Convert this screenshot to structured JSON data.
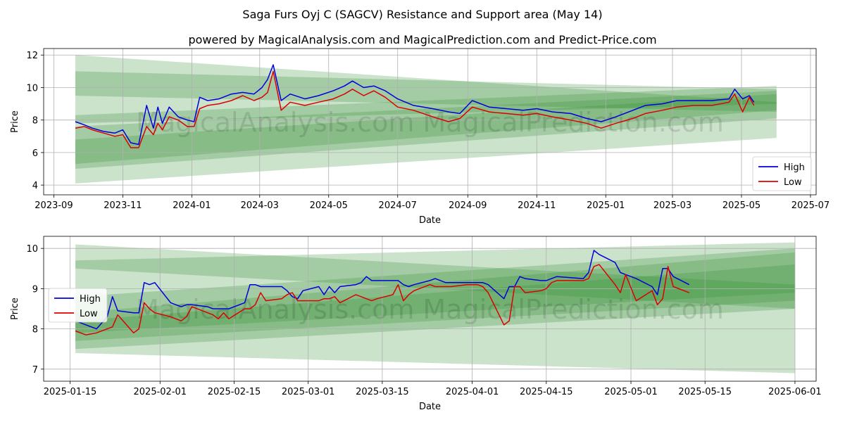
{
  "title": "Saga Furs Oyj C (SAGCV) Resistance and Support area (May 14)",
  "subtitle": "powered by MagicalAnalysis.com and MagicalPrediction.com and Predict-Price.com",
  "watermark": "MagicalAnalysis.com    MagicalPrediction.com",
  "colors": {
    "high": "#0000dd",
    "low": "#dd0000",
    "band": "#2e8b2e"
  },
  "chart_data": [
    {
      "type": "line",
      "xlabel": "Date",
      "ylabel": "Price",
      "grid": true,
      "legend_position": "bottom-right",
      "xlim": [
        "2023-08-23",
        "2025-07-06"
      ],
      "ylim": [
        3.4,
        12.4
      ],
      "x_ticks": [
        "2023-09",
        "2023-11",
        "2024-01",
        "2024-03",
        "2024-05",
        "2024-07",
        "2024-09",
        "2024-11",
        "2025-01",
        "2025-03",
        "2025-05",
        "2025-07"
      ],
      "y_ticks": [
        4,
        6,
        8,
        10,
        12
      ],
      "bands": [
        {
          "x": [
            "2023-09-20",
            "2025-06-01"
          ],
          "upper": [
            12.0,
            9.1
          ],
          "lower": [
            9.5,
            8.5
          ]
        },
        {
          "x": [
            "2023-09-20",
            "2025-06-01"
          ],
          "upper": [
            11.0,
            9.9
          ],
          "lower": [
            7.8,
            9.0
          ]
        },
        {
          "x": [
            "2023-09-20",
            "2025-06-01"
          ],
          "upper": [
            8.3,
            10.1
          ],
          "lower": [
            4.1,
            6.9
          ]
        },
        {
          "x": [
            "2023-09-20",
            "2025-06-01"
          ],
          "upper": [
            7.6,
            9.8
          ],
          "lower": [
            5.0,
            8.1
          ]
        },
        {
          "x": [
            "2023-09-20",
            "2025-06-01"
          ],
          "upper": [
            6.8,
            9.6
          ],
          "lower": [
            5.3,
            8.6
          ]
        }
      ],
      "series": [
        {
          "name": "High",
          "x": [
            "2023-09-20",
            "2023-09-28",
            "2023-10-05",
            "2023-10-15",
            "2023-10-25",
            "2023-11-01",
            "2023-11-08",
            "2023-11-15",
            "2023-11-22",
            "2023-11-28",
            "2023-12-02",
            "2023-12-06",
            "2023-12-12",
            "2023-12-20",
            "2023-12-28",
            "2024-01-03",
            "2024-01-08",
            "2024-01-15",
            "2024-01-25",
            "2024-02-05",
            "2024-02-15",
            "2024-02-25",
            "2024-03-03",
            "2024-03-08",
            "2024-03-13",
            "2024-03-20",
            "2024-03-28",
            "2024-04-10",
            "2024-04-22",
            "2024-05-05",
            "2024-05-15",
            "2024-05-22",
            "2024-06-01",
            "2024-06-10",
            "2024-06-20",
            "2024-07-01",
            "2024-07-15",
            "2024-08-01",
            "2024-08-15",
            "2024-08-25",
            "2024-09-05",
            "2024-09-20",
            "2024-10-05",
            "2024-10-20",
            "2024-11-01",
            "2024-11-15",
            "2024-12-01",
            "2024-12-15",
            "2024-12-28",
            "2025-01-10",
            "2025-01-25",
            "2025-02-05",
            "2025-02-20",
            "2025-03-05",
            "2025-03-20",
            "2025-04-05",
            "2025-04-20",
            "2025-04-25",
            "2025-05-02",
            "2025-05-08",
            "2025-05-12"
          ],
          "values": [
            7.9,
            7.7,
            7.5,
            7.3,
            7.2,
            7.4,
            6.6,
            6.5,
            8.9,
            7.5,
            8.8,
            7.8,
            8.8,
            8.2,
            8.0,
            7.9,
            9.4,
            9.2,
            9.3,
            9.6,
            9.7,
            9.6,
            10.0,
            10.5,
            11.4,
            9.2,
            9.6,
            9.3,
            9.5,
            9.8,
            10.1,
            10.4,
            10.0,
            10.1,
            9.8,
            9.3,
            8.9,
            8.7,
            8.5,
            8.4,
            9.2,
            8.8,
            8.7,
            8.6,
            8.7,
            8.5,
            8.4,
            8.1,
            7.9,
            8.2,
            8.6,
            8.9,
            9.0,
            9.2,
            9.2,
            9.2,
            9.3,
            9.9,
            9.3,
            9.5,
            9.1
          ]
        },
        {
          "name": "Low",
          "x": [
            "2023-09-20",
            "2023-09-28",
            "2023-10-05",
            "2023-10-15",
            "2023-10-25",
            "2023-11-01",
            "2023-11-08",
            "2023-11-15",
            "2023-11-22",
            "2023-11-28",
            "2023-12-02",
            "2023-12-06",
            "2023-12-12",
            "2023-12-20",
            "2023-12-28",
            "2024-01-03",
            "2024-01-08",
            "2024-01-15",
            "2024-01-25",
            "2024-02-05",
            "2024-02-15",
            "2024-02-25",
            "2024-03-03",
            "2024-03-08",
            "2024-03-13",
            "2024-03-20",
            "2024-03-28",
            "2024-04-10",
            "2024-04-22",
            "2024-05-05",
            "2024-05-15",
            "2024-05-22",
            "2024-06-01",
            "2024-06-10",
            "2024-06-20",
            "2024-07-01",
            "2024-07-15",
            "2024-08-01",
            "2024-08-15",
            "2024-08-25",
            "2024-09-05",
            "2024-09-20",
            "2024-10-05",
            "2024-10-20",
            "2024-11-01",
            "2024-11-15",
            "2024-12-01",
            "2024-12-15",
            "2024-12-28",
            "2025-01-10",
            "2025-01-25",
            "2025-02-05",
            "2025-02-20",
            "2025-03-05",
            "2025-03-20",
            "2025-04-05",
            "2025-04-20",
            "2025-04-25",
            "2025-05-02",
            "2025-05-08",
            "2025-05-12"
          ],
          "values": [
            7.5,
            7.6,
            7.4,
            7.2,
            7.0,
            7.1,
            6.3,
            6.3,
            7.6,
            7.1,
            7.8,
            7.4,
            8.2,
            8.0,
            7.6,
            7.6,
            8.7,
            8.9,
            9.0,
            9.2,
            9.5,
            9.2,
            9.4,
            9.7,
            11.0,
            8.6,
            9.1,
            8.9,
            9.1,
            9.3,
            9.6,
            9.9,
            9.5,
            9.8,
            9.4,
            8.8,
            8.6,
            8.2,
            7.9,
            8.1,
            8.8,
            8.5,
            8.4,
            8.3,
            8.4,
            8.2,
            8.0,
            7.8,
            7.5,
            7.8,
            8.1,
            8.4,
            8.6,
            8.8,
            8.9,
            8.9,
            9.1,
            9.6,
            8.5,
            9.4,
            8.9
          ]
        }
      ]
    },
    {
      "type": "line",
      "xlabel": "Date",
      "ylabel": "Price",
      "grid": true,
      "legend_position": "middle-left",
      "xlim": [
        "2025-01-10",
        "2025-06-05"
      ],
      "ylim": [
        6.7,
        10.3
      ],
      "x_ticks": [
        "2025-01-15",
        "2025-02-01",
        "2025-02-15",
        "2025-03-01",
        "2025-03-15",
        "2025-04-01",
        "2025-04-15",
        "2025-05-01",
        "2025-05-15",
        "2025-06-01"
      ],
      "y_ticks": [
        7,
        8,
        9,
        10
      ],
      "bands": [
        {
          "x": [
            "2025-01-16",
            "2025-06-01"
          ],
          "upper": [
            10.1,
            9.1
          ],
          "lower": [
            9.5,
            8.5
          ]
        },
        {
          "x": [
            "2025-01-16",
            "2025-06-01"
          ],
          "upper": [
            9.7,
            10.15
          ],
          "lower": [
            7.4,
            6.9
          ]
        },
        {
          "x": [
            "2025-01-16",
            "2025-06-01"
          ],
          "upper": [
            8.8,
            10.0
          ],
          "lower": [
            7.5,
            8.5
          ]
        },
        {
          "x": [
            "2025-01-16",
            "2025-06-01"
          ],
          "upper": [
            8.4,
            9.9
          ],
          "lower": [
            7.7,
            8.7
          ]
        },
        {
          "x": [
            "2025-01-16",
            "2025-06-01"
          ],
          "upper": [
            8.2,
            9.6
          ],
          "lower": [
            7.9,
            8.9
          ]
        }
      ],
      "series": [
        {
          "name": "High",
          "x": [
            "2025-01-16",
            "2025-01-18",
            "2025-01-20",
            "2025-01-22",
            "2025-01-23",
            "2025-01-24",
            "2025-01-27",
            "2025-01-28",
            "2025-01-29",
            "2025-01-30",
            "2025-01-31",
            "2025-02-03",
            "2025-02-04",
            "2025-02-05",
            "2025-02-06",
            "2025-02-07",
            "2025-02-10",
            "2025-02-11",
            "2025-02-12",
            "2025-02-13",
            "2025-02-14",
            "2025-02-17",
            "2025-02-18",
            "2025-02-19",
            "2025-02-20",
            "2025-02-21",
            "2025-02-24",
            "2025-02-25",
            "2025-02-26",
            "2025-02-27",
            "2025-02-28",
            "2025-03-03",
            "2025-03-04",
            "2025-03-05",
            "2025-03-06",
            "2025-03-07",
            "2025-03-10",
            "2025-03-11",
            "2025-03-12",
            "2025-03-13",
            "2025-03-14",
            "2025-03-17",
            "2025-03-18",
            "2025-03-19",
            "2025-03-20",
            "2025-03-21",
            "2025-03-24",
            "2025-03-25",
            "2025-03-26",
            "2025-03-27",
            "2025-03-28",
            "2025-03-31",
            "2025-04-01",
            "2025-04-02",
            "2025-04-03",
            "2025-04-04",
            "2025-04-07",
            "2025-04-08",
            "2025-04-09",
            "2025-04-10",
            "2025-04-11",
            "2025-04-14",
            "2025-04-15",
            "2025-04-16",
            "2025-04-17",
            "2025-04-22",
            "2025-04-23",
            "2025-04-24",
            "2025-04-25",
            "2025-04-28",
            "2025-04-29",
            "2025-04-30",
            "2025-05-02",
            "2025-05-05",
            "2025-05-06",
            "2025-05-07",
            "2025-05-08",
            "2025-05-09",
            "2025-05-12"
          ],
          "values": [
            8.2,
            8.1,
            8.0,
            8.3,
            8.8,
            8.45,
            8.4,
            8.4,
            9.15,
            9.1,
            9.15,
            8.65,
            8.6,
            8.55,
            8.6,
            8.6,
            8.55,
            8.5,
            8.5,
            8.5,
            8.5,
            8.65,
            9.1,
            9.1,
            9.05,
            9.05,
            9.05,
            8.95,
            8.8,
            8.75,
            8.95,
            9.05,
            8.85,
            9.05,
            8.9,
            9.05,
            9.1,
            9.15,
            9.3,
            9.2,
            9.2,
            9.2,
            9.2,
            9.1,
            9.05,
            9.1,
            9.2,
            9.25,
            9.2,
            9.15,
            9.15,
            9.15,
            9.15,
            9.15,
            9.15,
            9.1,
            8.75,
            9.05,
            9.05,
            9.3,
            9.25,
            9.2,
            9.2,
            9.25,
            9.3,
            9.25,
            9.4,
            9.95,
            9.85,
            9.65,
            9.4,
            9.35,
            9.25,
            9.05,
            8.85,
            9.5,
            9.5,
            9.3,
            9.1
          ]
        },
        {
          "name": "Low",
          "x": [
            "2025-01-16",
            "2025-01-18",
            "2025-01-20",
            "2025-01-22",
            "2025-01-23",
            "2025-01-24",
            "2025-01-27",
            "2025-01-28",
            "2025-01-29",
            "2025-01-30",
            "2025-01-31",
            "2025-02-03",
            "2025-02-04",
            "2025-02-05",
            "2025-02-06",
            "2025-02-07",
            "2025-02-10",
            "2025-02-11",
            "2025-02-12",
            "2025-02-13",
            "2025-02-14",
            "2025-02-17",
            "2025-02-18",
            "2025-02-19",
            "2025-02-20",
            "2025-02-21",
            "2025-02-24",
            "2025-02-25",
            "2025-02-26",
            "2025-02-27",
            "2025-02-28",
            "2025-03-03",
            "2025-03-04",
            "2025-03-05",
            "2025-03-06",
            "2025-03-07",
            "2025-03-10",
            "2025-03-11",
            "2025-03-12",
            "2025-03-13",
            "2025-03-14",
            "2025-03-17",
            "2025-03-18",
            "2025-03-19",
            "2025-03-20",
            "2025-03-21",
            "2025-03-24",
            "2025-03-25",
            "2025-03-26",
            "2025-03-27",
            "2025-03-28",
            "2025-03-31",
            "2025-04-01",
            "2025-04-02",
            "2025-04-03",
            "2025-04-04",
            "2025-04-07",
            "2025-04-08",
            "2025-04-09",
            "2025-04-10",
            "2025-04-11",
            "2025-04-14",
            "2025-04-15",
            "2025-04-16",
            "2025-04-17",
            "2025-04-22",
            "2025-04-23",
            "2025-04-24",
            "2025-04-25",
            "2025-04-28",
            "2025-04-29",
            "2025-04-30",
            "2025-05-02",
            "2025-05-05",
            "2025-05-06",
            "2025-05-07",
            "2025-05-08",
            "2025-05-09",
            "2025-05-12"
          ],
          "values": [
            7.95,
            7.85,
            7.9,
            8.0,
            8.05,
            8.35,
            7.9,
            8.0,
            8.65,
            8.5,
            8.4,
            8.3,
            8.25,
            8.2,
            8.3,
            8.55,
            8.4,
            8.35,
            8.25,
            8.4,
            8.25,
            8.5,
            8.5,
            8.6,
            8.9,
            8.7,
            8.75,
            8.85,
            8.9,
            8.7,
            8.7,
            8.7,
            8.75,
            8.75,
            8.8,
            8.65,
            8.85,
            8.8,
            8.75,
            8.7,
            8.75,
            8.85,
            9.1,
            8.7,
            8.85,
            8.95,
            9.1,
            9.05,
            9.05,
            9.05,
            9.05,
            9.1,
            9.1,
            9.1,
            9.05,
            8.9,
            8.1,
            8.2,
            9.05,
            9.05,
            8.9,
            8.95,
            9.0,
            9.15,
            9.2,
            9.2,
            9.25,
            9.55,
            9.6,
            9.1,
            8.9,
            9.35,
            8.7,
            8.95,
            8.6,
            8.75,
            9.55,
            9.05,
            8.9
          ]
        }
      ]
    }
  ]
}
